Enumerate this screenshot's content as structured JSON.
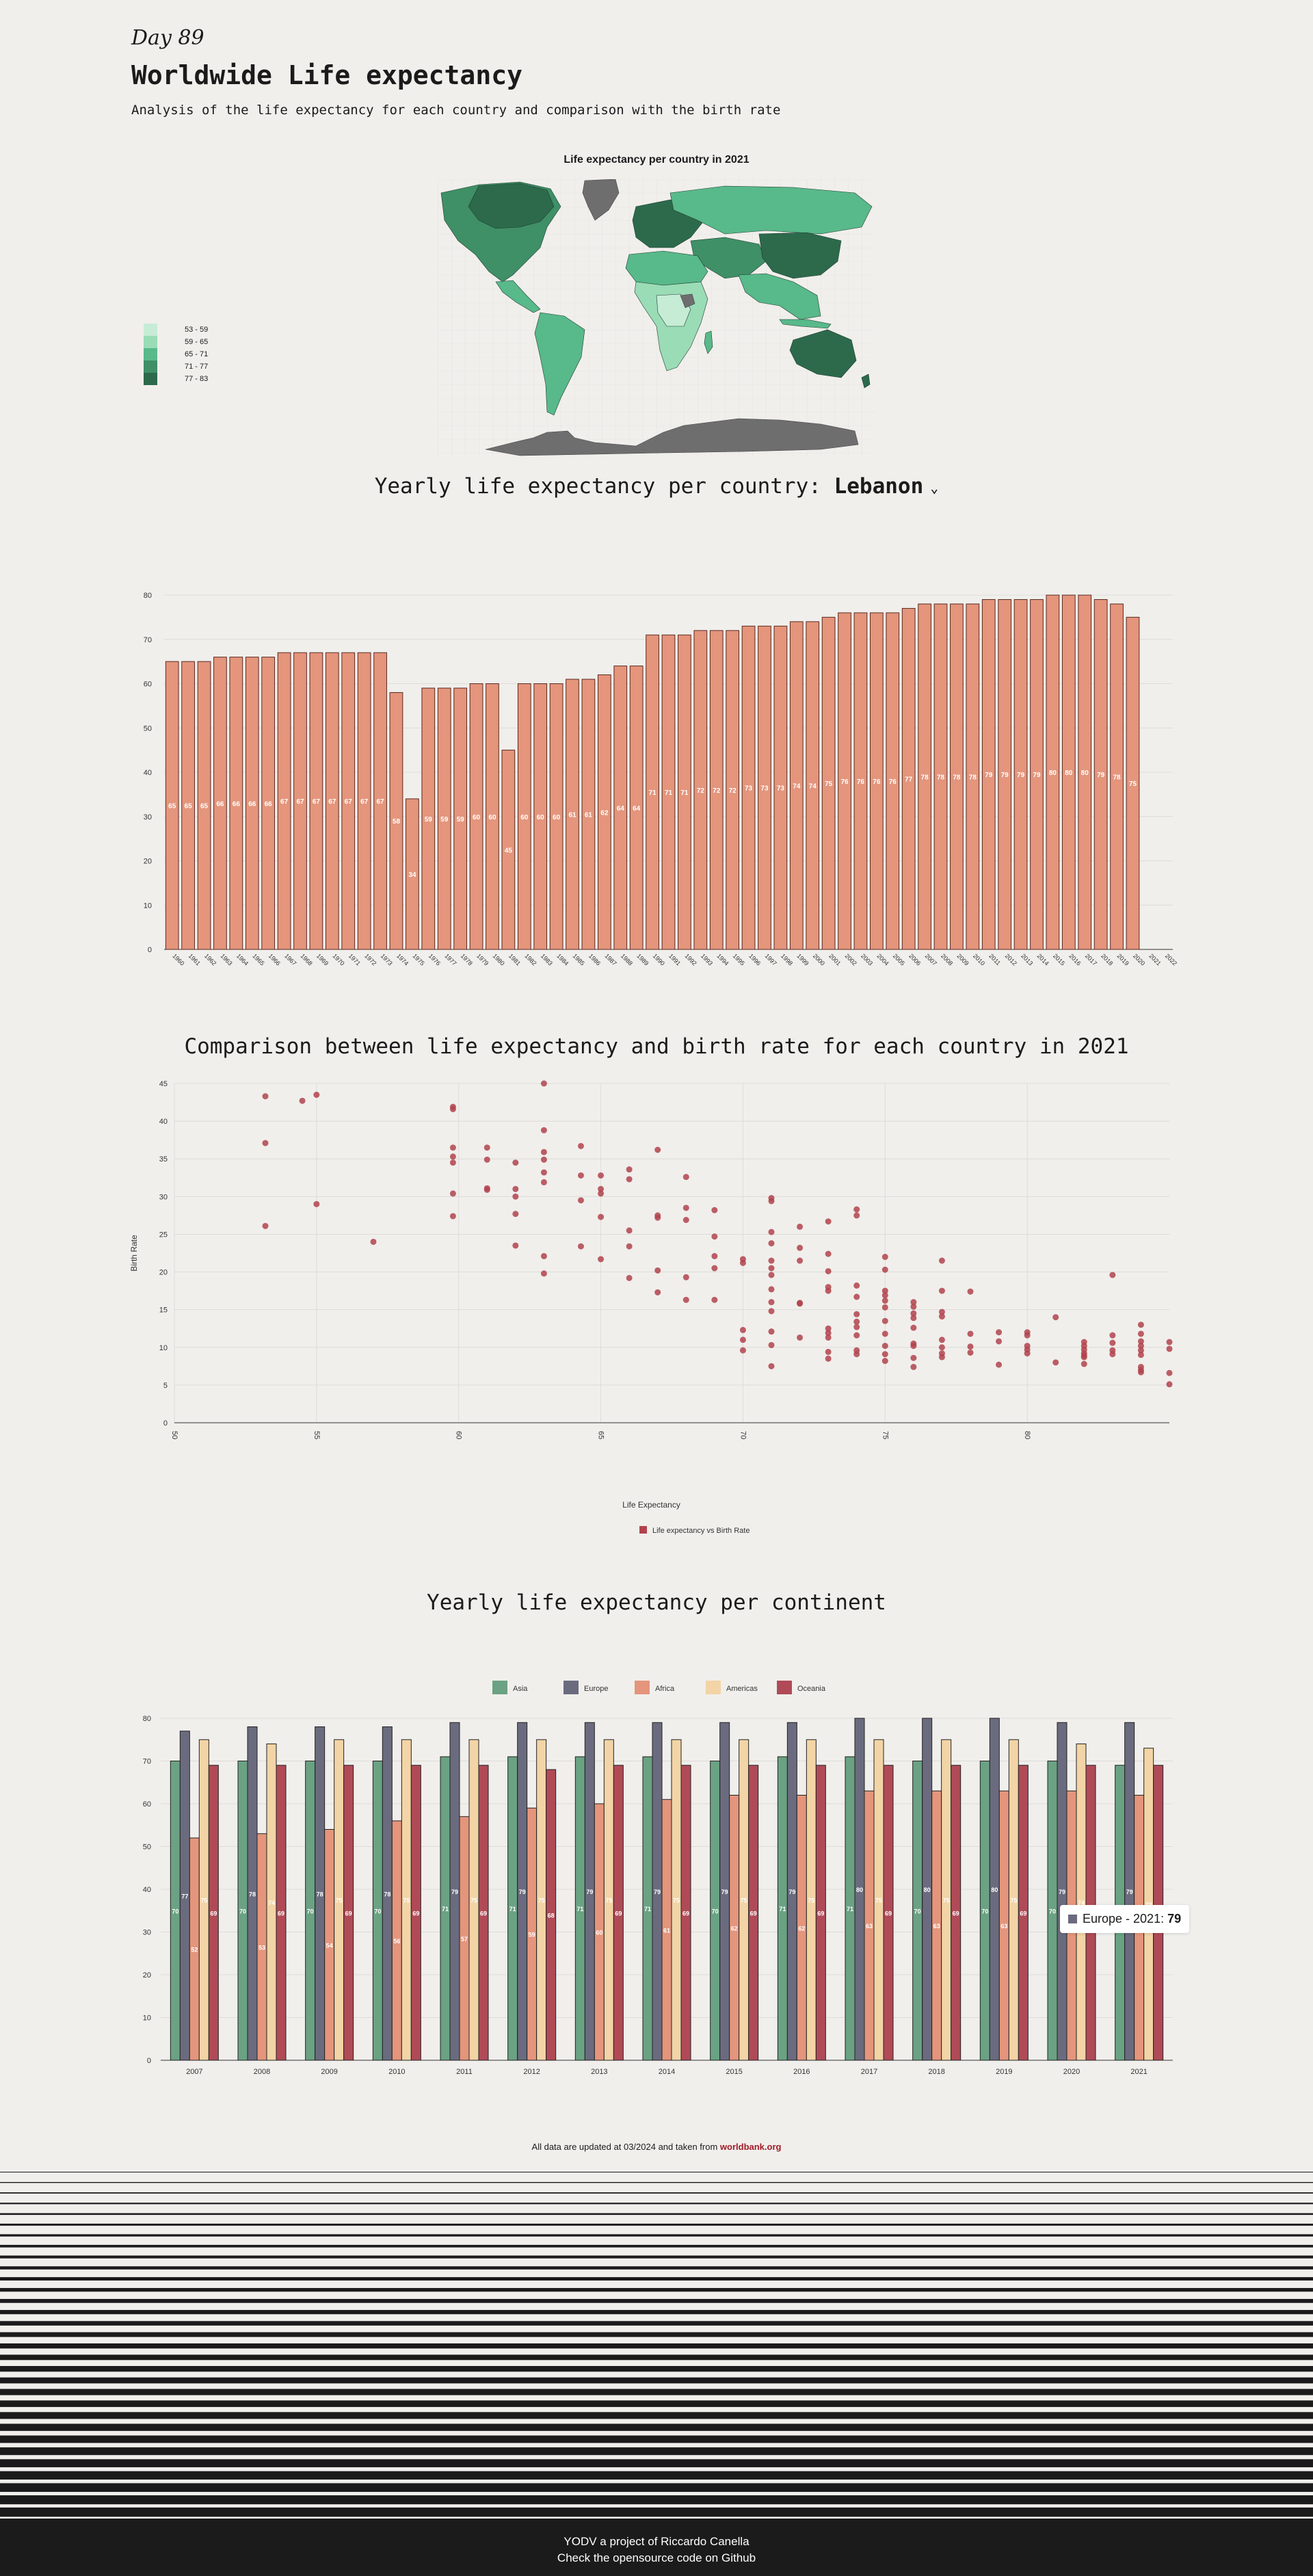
{
  "header": {
    "day": "Day 89",
    "title": "Worldwide Life expectancy",
    "subtitle": "Analysis of the life expectancy for each country and comparison with the birth rate"
  },
  "map": {
    "title": "Life expectancy per country in 2021",
    "legend": [
      {
        "label": "53 - 59",
        "color": "#c6ecd6"
      },
      {
        "label": "59 - 65",
        "color": "#9adcb6"
      },
      {
        "label": "65 - 71",
        "color": "#58b98a"
      },
      {
        "label": "71 - 77",
        "color": "#3f8f67"
      },
      {
        "label": "77 - 83",
        "color": "#2c6a4b"
      }
    ],
    "no_data_color": "#6e6e6e"
  },
  "country_section": {
    "heading": "Yearly life expectancy per country:",
    "selected_country": "Lebanon",
    "chevron_icon": "chevron-down-icon"
  },
  "chart_data": [
    {
      "type": "bar",
      "title": "",
      "y_ticks": [
        0,
        10,
        20,
        30,
        40,
        50,
        60,
        70,
        80
      ],
      "ylim": [
        0,
        80
      ],
      "color": "#e4957c",
      "categories": [
        "1960",
        "1961",
        "1962",
        "1963",
        "1964",
        "1965",
        "1966",
        "1967",
        "1968",
        "1969",
        "1970",
        "1971",
        "1972",
        "1973",
        "1974",
        "1975",
        "1976",
        "1977",
        "1978",
        "1979",
        "1980",
        "1981",
        "1982",
        "1983",
        "1984",
        "1985",
        "1986",
        "1987",
        "1988",
        "1989",
        "1990",
        "1991",
        "1992",
        "1993",
        "1994",
        "1995",
        "1996",
        "1997",
        "1998",
        "1999",
        "2000",
        "2001",
        "2002",
        "2003",
        "2004",
        "2005",
        "2006",
        "2007",
        "2008",
        "2009",
        "2010",
        "2011",
        "2012",
        "2013",
        "2014",
        "2015",
        "2016",
        "2017",
        "2018",
        "2019",
        "2020",
        "2021",
        "2022"
      ],
      "values": [
        65,
        65,
        65,
        66,
        66,
        66,
        66,
        67,
        67,
        67,
        67,
        67,
        67,
        67,
        58,
        34,
        59,
        59,
        59,
        60,
        60,
        45,
        60,
        60,
        60,
        61,
        61,
        62,
        64,
        64,
        71,
        71,
        71,
        72,
        72,
        72,
        73,
        73,
        73,
        74,
        74,
        75,
        76,
        76,
        76,
        76,
        77,
        78,
        78,
        78,
        78,
        79,
        79,
        79,
        79,
        80,
        80,
        80,
        79,
        78,
        75,
        null,
        null
      ]
    },
    {
      "type": "scatter",
      "title": "Comparison between life expectancy and birth rate for each country in 2021",
      "xlabel": "Life Expectancy",
      "ylabel": "Birth Rate",
      "x_ticks": [
        50,
        55,
        60,
        65,
        70,
        75,
        80
      ],
      "y_ticks": [
        0,
        5,
        10,
        15,
        20,
        25,
        30,
        35,
        40,
        45
      ],
      "xlim": [
        50,
        85
      ],
      "ylim": [
        0,
        45
      ],
      "legend": "Life expectancy vs Birth Rate",
      "color": "#b1434d",
      "points": [
        [
          53.2,
          43.3
        ],
        [
          53.2,
          37.1
        ],
        [
          53.2,
          26.1
        ],
        [
          54.5,
          42.7
        ],
        [
          55,
          43.5
        ],
        [
          55,
          29
        ],
        [
          57,
          24
        ],
        [
          59.8,
          41.9
        ],
        [
          59.8,
          41.6
        ],
        [
          59.8,
          36.5
        ],
        [
          59.8,
          35.3
        ],
        [
          59.8,
          34.5
        ],
        [
          59.8,
          30.4
        ],
        [
          59.8,
          27.4
        ],
        [
          61,
          36.5
        ],
        [
          61,
          34.9
        ],
        [
          61,
          31.1
        ],
        [
          61,
          30.9
        ],
        [
          62,
          34.5
        ],
        [
          62,
          31
        ],
        [
          62,
          30
        ],
        [
          62,
          27.7
        ],
        [
          62,
          23.5
        ],
        [
          63,
          45
        ],
        [
          63,
          38.8
        ],
        [
          63,
          35.9
        ],
        [
          63,
          34.9
        ],
        [
          63,
          33.2
        ],
        [
          63,
          31.9
        ],
        [
          63,
          22.1
        ],
        [
          63,
          19.8
        ],
        [
          64.3,
          36.7
        ],
        [
          64.3,
          32.8
        ],
        [
          64.3,
          29.5
        ],
        [
          64.3,
          23.4
        ],
        [
          65,
          32.8
        ],
        [
          65,
          31
        ],
        [
          65,
          30.4
        ],
        [
          65,
          27.3
        ],
        [
          65,
          21.7
        ],
        [
          66,
          33.6
        ],
        [
          66,
          32.3
        ],
        [
          66,
          25.5
        ],
        [
          66,
          23.4
        ],
        [
          66,
          19.2
        ],
        [
          67,
          36.2
        ],
        [
          67,
          27.5
        ],
        [
          67,
          27.2
        ],
        [
          67,
          20.2
        ],
        [
          67,
          17.3
        ],
        [
          68,
          32.6
        ],
        [
          68,
          28.5
        ],
        [
          68,
          26.9
        ],
        [
          68,
          19.3
        ],
        [
          68,
          16.3
        ],
        [
          69,
          28.2
        ],
        [
          69,
          24.7
        ],
        [
          69,
          22.1
        ],
        [
          69,
          20.5
        ],
        [
          69,
          16.3
        ],
        [
          70,
          21.7
        ],
        [
          70,
          21.2
        ],
        [
          70,
          12.3
        ],
        [
          70,
          11
        ],
        [
          70,
          9.6
        ],
        [
          71,
          29.8
        ],
        [
          71,
          29.4
        ],
        [
          71,
          25.3
        ],
        [
          71,
          23.8
        ],
        [
          71,
          21.5
        ],
        [
          71,
          20.5
        ],
        [
          71,
          19.6
        ],
        [
          71,
          17.7
        ],
        [
          71,
          16
        ],
        [
          71,
          14.8
        ],
        [
          71,
          12.1
        ],
        [
          71,
          10.3
        ],
        [
          71,
          7.5
        ],
        [
          72,
          26
        ],
        [
          72,
          23.2
        ],
        [
          72,
          21.5
        ],
        [
          72,
          15.9
        ],
        [
          72,
          15.8
        ],
        [
          72,
          11.3
        ],
        [
          73,
          26.7
        ],
        [
          73,
          22.4
        ],
        [
          73,
          20.1
        ],
        [
          73,
          18
        ],
        [
          73,
          17.5
        ],
        [
          73,
          12.5
        ],
        [
          73,
          11.9
        ],
        [
          73,
          11.3
        ],
        [
          73,
          9.4
        ],
        [
          73,
          8.5
        ],
        [
          74,
          28.3
        ],
        [
          74,
          27.5
        ],
        [
          74,
          18.2
        ],
        [
          74,
          16.7
        ],
        [
          74,
          14.4
        ],
        [
          74,
          13.4
        ],
        [
          74,
          12.7
        ],
        [
          74,
          11.6
        ],
        [
          74,
          9.6
        ],
        [
          74,
          9.1
        ],
        [
          75,
          22
        ],
        [
          75,
          20.3
        ],
        [
          75,
          17.5
        ],
        [
          75,
          16.9
        ],
        [
          75,
          16.2
        ],
        [
          75,
          15.3
        ],
        [
          75,
          13.5
        ],
        [
          75,
          11.8
        ],
        [
          75,
          10.2
        ],
        [
          75,
          9.1
        ],
        [
          75,
          8.2
        ],
        [
          76,
          16
        ],
        [
          76,
          15.4
        ],
        [
          76,
          14.5
        ],
        [
          76,
          13.9
        ],
        [
          76,
          12.6
        ],
        [
          76,
          10.5
        ],
        [
          76,
          10.2
        ],
        [
          76,
          8.6
        ],
        [
          76,
          7.4
        ],
        [
          77,
          21.5
        ],
        [
          77,
          17.5
        ],
        [
          77,
          14.7
        ],
        [
          77,
          14.1
        ],
        [
          77,
          11
        ],
        [
          77,
          10
        ],
        [
          77,
          9.2
        ],
        [
          77,
          8.7
        ],
        [
          78,
          17.4
        ],
        [
          78,
          11.8
        ],
        [
          78,
          10.1
        ],
        [
          78,
          9.3
        ],
        [
          79,
          12
        ],
        [
          79,
          10.8
        ],
        [
          79,
          7.7
        ],
        [
          80,
          12
        ],
        [
          80,
          11.6
        ],
        [
          80,
          10.2
        ],
        [
          80,
          9.7
        ],
        [
          80,
          9.2
        ],
        [
          81,
          14
        ],
        [
          81,
          8
        ],
        [
          82,
          10.7
        ],
        [
          82,
          10.2
        ],
        [
          82,
          9.7
        ],
        [
          82,
          9.2
        ],
        [
          82,
          8.9
        ],
        [
          82,
          8.7
        ],
        [
          82,
          7.8
        ],
        [
          83,
          19.6
        ],
        [
          83,
          11.6
        ],
        [
          83,
          10.6
        ],
        [
          83,
          9.6
        ],
        [
          83,
          9.1
        ],
        [
          84,
          13
        ],
        [
          84,
          11.8
        ],
        [
          84,
          10.8
        ],
        [
          84,
          10.2
        ],
        [
          84,
          9.6
        ],
        [
          84,
          9
        ],
        [
          84,
          7.4
        ],
        [
          84,
          7
        ],
        [
          84,
          6.7
        ],
        [
          85,
          10.7
        ],
        [
          85,
          9.8
        ],
        [
          85,
          6.6
        ],
        [
          85,
          5.1
        ]
      ]
    },
    {
      "type": "bar",
      "title": "Yearly life expectancy per continent",
      "y_ticks": [
        0,
        10,
        20,
        30,
        40,
        50,
        60,
        70,
        80
      ],
      "ylim": [
        0,
        80
      ],
      "categories": [
        "2007",
        "2008",
        "2009",
        "2010",
        "2011",
        "2012",
        "2013",
        "2014",
        "2015",
        "2016",
        "2017",
        "2018",
        "2019",
        "2020",
        "2021"
      ],
      "series": [
        {
          "name": "Asia",
          "color": "#6aa283",
          "values": [
            70,
            70,
            70,
            70,
            71,
            71,
            71,
            71,
            70,
            71,
            71,
            70,
            70,
            70,
            69
          ]
        },
        {
          "name": "Europe",
          "color": "#6a6b7e",
          "values": [
            77,
            78,
            78,
            78,
            79,
            79,
            79,
            79,
            79,
            79,
            80,
            80,
            80,
            79,
            79
          ]
        },
        {
          "name": "Africa",
          "color": "#e4957c",
          "values": [
            52,
            53,
            54,
            56,
            57,
            59,
            60,
            61,
            62,
            62,
            63,
            63,
            63,
            63,
            62
          ]
        },
        {
          "name": "Americas",
          "color": "#f2d4a6",
          "values": [
            75,
            74,
            75,
            75,
            75,
            75,
            75,
            75,
            75,
            75,
            75,
            75,
            75,
            74,
            73
          ]
        },
        {
          "name": "Oceania",
          "color": "#b04a57",
          "values": [
            69,
            69,
            69,
            69,
            69,
            68,
            69,
            69,
            69,
            69,
            69,
            69,
            69,
            69,
            69
          ]
        }
      ]
    }
  ],
  "tooltip": {
    "label": "Europe - 2021:",
    "value": "79"
  },
  "footer_note": {
    "text": "All data are updated at 03/2024 and taken from",
    "link": "worldbank.org"
  },
  "footer": {
    "line1": "YODV a project of Riccardo Canella",
    "line2": "Check the opensource code on Github"
  }
}
